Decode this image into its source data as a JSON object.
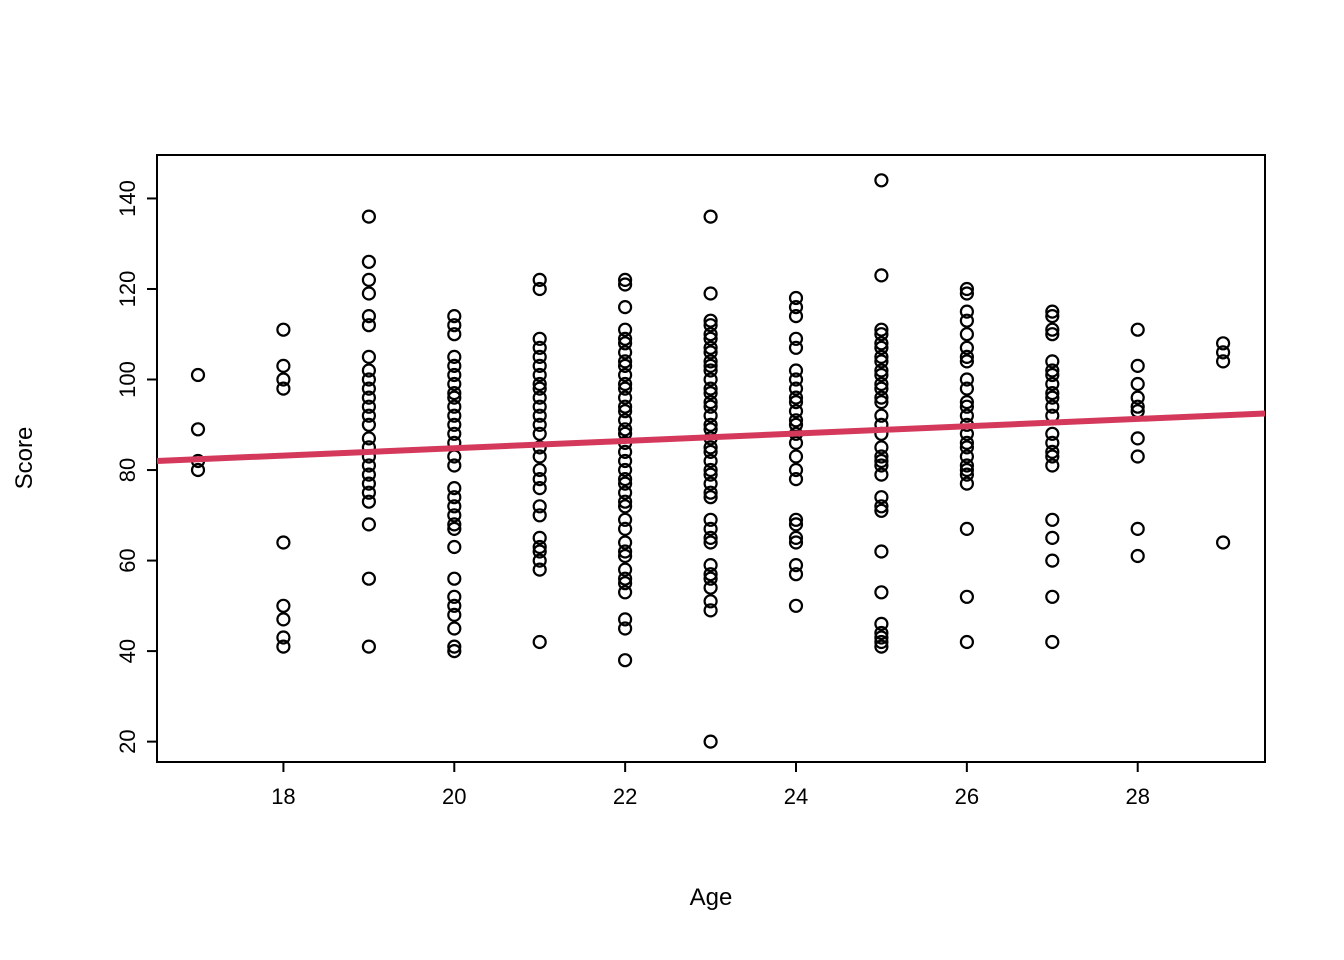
{
  "figure": {
    "background": "#ffffff",
    "plot_border_color": "#000000",
    "point_color": "#000000",
    "line_color": "#d4395c"
  },
  "chart_data": {
    "type": "scatter",
    "title": "",
    "xlabel": "Age",
    "ylabel": "Score",
    "x_ticks": [
      18,
      20,
      22,
      24,
      26,
      28
    ],
    "y_ticks": [
      20,
      40,
      60,
      80,
      100,
      120,
      140
    ],
    "xlim": [
      16.52,
      29.49
    ],
    "ylim": [
      15.5,
      149.6
    ],
    "grid": false,
    "legend": "none",
    "marker": {
      "shape": "open-circle",
      "color": "#000000"
    },
    "points_by_age": [
      {
        "age": 17,
        "scores": [
          101,
          89,
          82,
          80
        ]
      },
      {
        "age": 18,
        "scores": [
          111,
          103,
          100,
          98,
          64,
          50,
          47,
          43,
          41
        ]
      },
      {
        "age": 19,
        "scores": [
          136,
          126,
          122,
          119,
          114,
          112,
          105,
          102,
          100,
          98,
          96,
          94,
          92,
          90,
          87,
          85,
          83,
          81,
          79,
          77,
          75,
          73,
          68,
          56,
          41
        ]
      },
      {
        "age": 20,
        "scores": [
          114,
          112,
          110,
          105,
          103,
          101,
          99,
          97,
          96,
          94,
          92,
          90,
          88,
          86,
          83,
          81,
          76,
          74,
          72,
          70,
          68,
          67,
          63,
          56,
          52,
          50,
          48,
          45,
          41,
          40
        ]
      },
      {
        "age": 21,
        "scores": [
          122,
          120,
          109,
          107,
          105,
          103,
          101,
          99,
          98,
          96,
          94,
          92,
          90,
          88,
          85,
          83,
          80,
          78,
          76,
          72,
          70,
          65,
          63,
          62,
          60,
          58,
          42
        ]
      },
      {
        "age": 22,
        "scores": [
          122,
          121,
          116,
          111,
          109,
          108,
          106,
          104,
          103,
          101,
          99,
          98,
          96,
          94,
          93,
          91,
          89,
          88,
          86,
          84,
          82,
          80,
          78,
          77,
          75,
          73,
          72,
          69,
          67,
          64,
          62,
          61,
          58,
          56,
          55,
          53,
          47,
          45,
          38
        ]
      },
      {
        "age": 23,
        "scores": [
          136,
          119,
          113,
          112,
          110,
          109,
          107,
          106,
          104,
          103,
          102,
          100,
          98,
          97,
          95,
          94,
          92,
          90,
          89,
          87,
          85,
          84,
          82,
          80,
          79,
          77,
          75,
          74,
          69,
          67,
          65,
          64,
          59,
          57,
          56,
          54,
          51,
          49,
          20
        ]
      },
      {
        "age": 24,
        "scores": [
          118,
          116,
          114,
          109,
          107,
          102,
          100,
          98,
          96,
          95,
          93,
          91,
          90,
          88,
          86,
          83,
          80,
          78,
          69,
          68,
          65,
          64,
          59,
          57,
          50
        ]
      },
      {
        "age": 25,
        "scores": [
          144,
          123,
          111,
          110,
          108,
          107,
          105,
          104,
          102,
          101,
          99,
          98,
          96,
          95,
          92,
          90,
          88,
          85,
          83,
          82,
          81,
          79,
          74,
          72,
          71,
          62,
          53,
          46,
          44,
          43,
          42,
          41
        ]
      },
      {
        "age": 26,
        "scores": [
          120,
          119,
          115,
          113,
          110,
          107,
          105,
          104,
          100,
          98,
          95,
          94,
          92,
          90,
          88,
          86,
          85,
          83,
          81,
          80,
          79,
          77,
          67,
          52,
          42
        ]
      },
      {
        "age": 27,
        "scores": [
          115,
          114,
          111,
          110,
          104,
          102,
          101,
          99,
          97,
          96,
          94,
          92,
          88,
          86,
          84,
          83,
          81,
          69,
          65,
          60,
          52,
          42
        ]
      },
      {
        "age": 28,
        "scores": [
          111,
          103,
          99,
          96,
          94,
          93,
          87,
          83,
          67,
          61
        ]
      },
      {
        "age": 29,
        "scores": [
          108,
          106,
          104,
          64
        ]
      }
    ],
    "regression_line": {
      "color": "#d4395c",
      "x1": 16.52,
      "y1": 82.0,
      "x2": 29.49,
      "y2": 92.5
    }
  }
}
